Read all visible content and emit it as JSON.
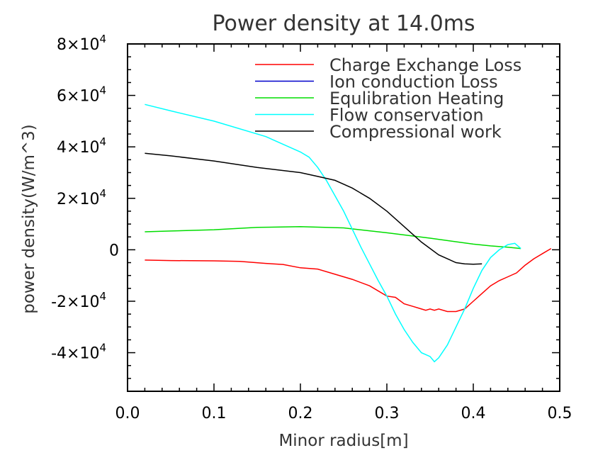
{
  "chart_data": {
    "type": "line",
    "title": "Power density at  14.0ms",
    "xlabel": "Minor radius[m]",
    "ylabel": "power density(W/m^3)",
    "xlim": [
      0.0,
      0.5
    ],
    "ylim": [
      -55000,
      80000
    ],
    "x_ticks": [
      0.0,
      0.1,
      0.2,
      0.3,
      0.4,
      0.5
    ],
    "x_tick_labels": [
      "0.0",
      "0.1",
      "0.2",
      "0.3",
      "0.4",
      "0.5"
    ],
    "y_ticks": [
      {
        "value": 80000,
        "mantissa": "8",
        "exp": "4"
      },
      {
        "value": 60000,
        "mantissa": "6",
        "exp": "4"
      },
      {
        "value": 40000,
        "mantissa": "4",
        "exp": "4"
      },
      {
        "value": 20000,
        "mantissa": "2",
        "exp": "4"
      },
      {
        "value": 0,
        "mantissa": "0",
        "exp": ""
      },
      {
        "value": -20000,
        "mantissa": "-2",
        "exp": "4"
      },
      {
        "value": -40000,
        "mantissa": "-4",
        "exp": "4"
      }
    ],
    "legend_position": "top-right",
    "grid": false,
    "series": [
      {
        "name": "Charge Exchange Loss",
        "color": "#ff0000",
        "x": [
          0.02,
          0.05,
          0.1,
          0.13,
          0.16,
          0.18,
          0.2,
          0.22,
          0.24,
          0.26,
          0.28,
          0.3,
          0.31,
          0.32,
          0.33,
          0.34,
          0.345,
          0.35,
          0.355,
          0.36,
          0.37,
          0.38,
          0.39,
          0.4,
          0.41,
          0.42,
          0.43,
          0.44,
          0.45,
          0.46,
          0.47,
          0.48,
          0.49
        ],
        "y": [
          -4000,
          -4200,
          -4300,
          -4500,
          -5300,
          -5700,
          -7000,
          -7500,
          -9500,
          -11500,
          -14000,
          -18000,
          -18500,
          -21000,
          -22000,
          -23000,
          -23500,
          -23000,
          -23500,
          -23000,
          -24000,
          -24000,
          -23000,
          -20000,
          -17000,
          -14000,
          -12000,
          -10500,
          -9000,
          -6000,
          -3500,
          -1500,
          500
        ]
      },
      {
        "name": "Ion conduction Loss",
        "color": "#0000cc",
        "x": [],
        "y": []
      },
      {
        "name": "Equlibration Heating",
        "color": "#00dd00",
        "x": [
          0.02,
          0.05,
          0.1,
          0.15,
          0.2,
          0.25,
          0.3,
          0.35,
          0.4,
          0.42,
          0.44,
          0.455
        ],
        "y": [
          7000,
          7300,
          7800,
          8700,
          9000,
          8500,
          6600,
          4500,
          2200,
          1500,
          1000,
          500
        ]
      },
      {
        "name": "Flow conservation",
        "color": "#00ffff",
        "x": [
          0.02,
          0.05,
          0.1,
          0.16,
          0.2,
          0.21,
          0.22,
          0.23,
          0.24,
          0.25,
          0.26,
          0.27,
          0.28,
          0.29,
          0.3,
          0.31,
          0.32,
          0.33,
          0.34,
          0.35,
          0.355,
          0.36,
          0.37,
          0.38,
          0.39,
          0.4,
          0.41,
          0.42,
          0.43,
          0.44,
          0.448,
          0.455
        ],
        "y": [
          56500,
          54000,
          50000,
          44000,
          38000,
          36000,
          32000,
          27000,
          21000,
          15000,
          8000,
          1000,
          -5500,
          -12000,
          -18000,
          -25000,
          -31000,
          -36000,
          -40000,
          -41500,
          -43500,
          -42000,
          -37000,
          -30000,
          -23000,
          -15000,
          -8000,
          -3000,
          0,
          2000,
          2500,
          500
        ]
      },
      {
        "name": "Compressional work",
        "color": "#000000",
        "x": [
          0.02,
          0.05,
          0.1,
          0.15,
          0.2,
          0.22,
          0.24,
          0.26,
          0.28,
          0.3,
          0.32,
          0.34,
          0.36,
          0.38,
          0.39,
          0.4,
          0.41
        ],
        "y": [
          37500,
          36500,
          34500,
          32000,
          30000,
          28500,
          27000,
          24000,
          20000,
          15000,
          9000,
          3000,
          -2000,
          -5000,
          -5500,
          -5600,
          -5500
        ]
      }
    ]
  }
}
